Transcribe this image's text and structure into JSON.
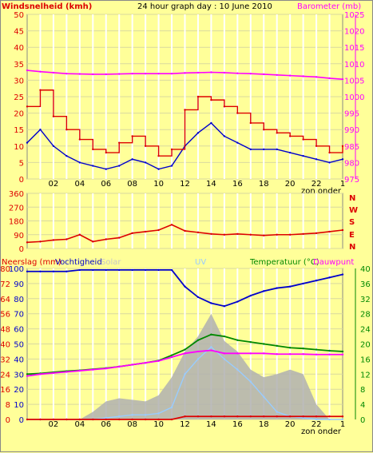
{
  "header": {
    "left_label": "Windsnelheid (kmh)",
    "title": "24 hour graph day : 10 June 2010",
    "right_label": "Barometer (mb)"
  },
  "panel2": {
    "right_labels": [
      "N",
      "W",
      "S",
      "E",
      "N"
    ]
  },
  "panel3": {
    "labels": {
      "neerslag": "Neerslag (mm)",
      "vochtigheid": "Vochtigheid",
      "solar": "Solar",
      "uv": "UV",
      "temperatuur": "Temperatuur (°C)",
      "dauwpunt": "Dauwpunt"
    }
  },
  "footers": {
    "zon_onder": "zon onder"
  },
  "colors": {
    "background": "#ffff99",
    "wind": "#dd0000",
    "wind_avg": "#0000cc",
    "barometer": "#ff00ff",
    "direction": "#dd0000",
    "humidity": "#0000cc",
    "temperature": "#008800",
    "dewpoint": "#ff00ff",
    "rain": "#dd0000",
    "solar": "#b0b0b0",
    "uv": "#99ccff",
    "border_magenta": "#ff00ff",
    "border_green": "#008800"
  },
  "chart_data": [
    {
      "type": "line",
      "title": "24 hour graph day : 10 June 2010",
      "x_ticks": [
        "02",
        "04",
        "06",
        "08",
        "10",
        "12",
        "14",
        "16",
        "18",
        "20",
        "22",
        "1"
      ],
      "ylabel_left": "Windsnelheid (kmh)",
      "ylim_left": [
        0,
        50
      ],
      "yticks_left": [
        0,
        5,
        10,
        15,
        20,
        25,
        30,
        35,
        40,
        45,
        50
      ],
      "ylabel_right": "Barometer (mb)",
      "ylim_right": [
        975,
        1025
      ],
      "yticks_right": [
        975,
        980,
        985,
        990,
        995,
        1000,
        1005,
        1010,
        1015,
        1020,
        1025
      ],
      "x_hours": [
        0,
        1,
        2,
        3,
        4,
        5,
        6,
        7,
        8,
        9,
        10,
        11,
        12,
        13,
        14,
        15,
        16,
        17,
        18,
        19,
        20,
        21,
        22,
        23,
        24
      ],
      "series": [
        {
          "name": "Windsnelheid (kmh)",
          "axis": "left",
          "values": [
            22,
            27,
            19,
            15,
            12,
            9,
            8,
            11,
            13,
            10,
            7,
            9,
            21,
            25,
            24,
            22,
            20,
            17,
            15,
            14,
            13,
            12,
            10,
            8,
            10
          ]
        },
        {
          "axis": "left",
          "values": [
            11,
            15,
            10,
            7,
            5,
            4,
            3,
            4,
            6,
            5,
            3,
            4,
            10,
            14,
            17,
            13,
            11,
            9,
            9,
            9,
            8,
            7,
            6,
            5,
            6
          ]
        },
        {
          "name": "Barometer (mb)",
          "axis": "right",
          "values": [
            1008,
            1007.6,
            1007.3,
            1007,
            1006.9,
            1006.8,
            1006.8,
            1006.9,
            1007,
            1007,
            1007,
            1007,
            1007.2,
            1007.3,
            1007.4,
            1007.3,
            1007.1,
            1007,
            1006.8,
            1006.6,
            1006.4,
            1006.2,
            1006,
            1005.6,
            1005.3
          ]
        }
      ]
    },
    {
      "type": "line",
      "x_ticks": [],
      "ylim": [
        0,
        360
      ],
      "yticks": [
        0,
        90,
        180,
        270,
        360
      ],
      "x_hours": [
        0,
        1,
        2,
        3,
        4,
        5,
        6,
        7,
        8,
        9,
        10,
        11,
        12,
        13,
        14,
        15,
        16,
        17,
        18,
        19,
        20,
        21,
        22,
        23,
        24
      ],
      "series": [
        {
          "axis": "left",
          "values": [
            40,
            45,
            55,
            60,
            90,
            45,
            60,
            70,
            100,
            110,
            120,
            155,
            115,
            105,
            95,
            90,
            95,
            90,
            85,
            90,
            90,
            95,
            100,
            110,
            120
          ]
        }
      ]
    },
    {
      "type": "line",
      "x_ticks": [
        "02",
        "04",
        "06",
        "08",
        "10",
        "12",
        "14",
        "16",
        "18",
        "20",
        "22",
        "1"
      ],
      "ylim_left": [
        0,
        100
      ],
      "yticks_left": [
        0,
        10,
        20,
        30,
        40,
        50,
        60,
        70,
        80,
        90,
        100
      ],
      "left_tick_labels": [
        "0",
        "8",
        "16",
        "24",
        "32",
        "40",
        "48",
        "56",
        "64",
        "72",
        "80"
      ],
      "ylim_right": [
        0,
        40
      ],
      "yticks_right": [
        0,
        4,
        8,
        12,
        16,
        20,
        24,
        28,
        32,
        36,
        40
      ],
      "x_hours": [
        0,
        1,
        2,
        3,
        4,
        5,
        6,
        7,
        8,
        9,
        10,
        11,
        12,
        13,
        14,
        15,
        16,
        17,
        18,
        19,
        20,
        21,
        22,
        23,
        24
      ],
      "series": [
        {
          "name": "Vochtigheid",
          "axis": "left",
          "values": [
            98,
            98,
            98,
            98,
            99,
            99,
            99,
            99,
            99,
            99,
            99,
            99,
            88,
            81,
            77,
            75,
            78,
            82,
            85,
            87,
            88,
            90,
            92,
            94,
            96
          ]
        },
        {
          "name": "Temperatuur (°C)",
          "axis": "right",
          "values": [
            12,
            12.2,
            12.5,
            12.8,
            13,
            13.3,
            13.6,
            14,
            14.5,
            15,
            15.6,
            17,
            18.5,
            21,
            22.5,
            22,
            21,
            20.5,
            20,
            19.5,
            19,
            18.8,
            18.5,
            18.2,
            18
          ]
        },
        {
          "name": "Dauwpunt",
          "axis": "right",
          "values": [
            11.5,
            12,
            12.3,
            12.6,
            12.9,
            13.2,
            13.5,
            14,
            14.5,
            15,
            15.5,
            16.5,
            17.5,
            18,
            18.3,
            17.5,
            17.5,
            17.5,
            17.5,
            17.3,
            17.3,
            17.3,
            17.2,
            17.2,
            17.2
          ]
        },
        {
          "name": "Solar",
          "axis": "left",
          "kind": "area",
          "values": [
            0,
            0,
            0,
            0,
            0,
            5,
            12,
            14,
            13,
            12,
            16,
            28,
            45,
            55,
            70,
            52,
            45,
            33,
            28,
            30,
            33,
            30,
            10,
            0,
            0
          ]
        },
        {
          "name": "UV",
          "axis": "left",
          "values": [
            0,
            0,
            0,
            0,
            0,
            0,
            1,
            2,
            3,
            3,
            4,
            8,
            30,
            40,
            48,
            40,
            33,
            25,
            15,
            5,
            2,
            1,
            0,
            0,
            0
          ]
        },
        {
          "name": "Neerslag (mm)",
          "axis": "left",
          "values": [
            0,
            0,
            0,
            0,
            0,
            0,
            0,
            0,
            0,
            0,
            0,
            0,
            2,
            2,
            2,
            2,
            2,
            2,
            2,
            2,
            2,
            2,
            2,
            2,
            2
          ]
        }
      ]
    }
  ]
}
